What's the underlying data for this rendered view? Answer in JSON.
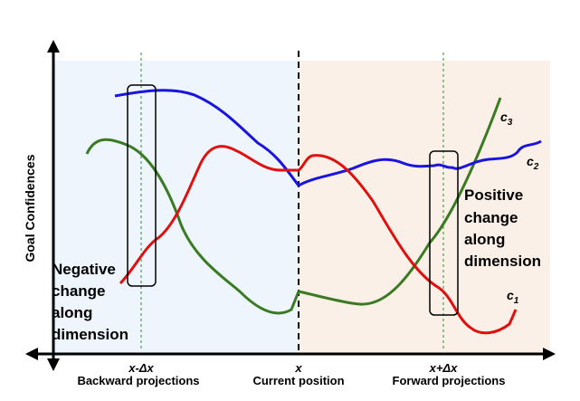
{
  "y_axis_label": "Goal Confidences",
  "ticks": {
    "left": "x-Δx",
    "center": "x",
    "right": "x+Δx"
  },
  "regions": {
    "backward": "Backward projections",
    "current": "Current position",
    "forward": "Forward projections"
  },
  "annotations": {
    "negative": [
      "Negative",
      "change",
      "along",
      "dimension"
    ],
    "positive": [
      "Positive",
      "change",
      "along",
      "dimension"
    ]
  },
  "curves": [
    {
      "name": "c",
      "sub": "3",
      "color": "#3a7a22"
    },
    {
      "name": "c",
      "sub": "2",
      "color": "#1a14e0"
    },
    {
      "name": "c",
      "sub": "1",
      "color": "#e01010"
    }
  ],
  "colors": {
    "backward_fill": "#eef5fc",
    "forward_fill": "#fbf0e7",
    "axis": "#000000",
    "guide": "#2f8a2f"
  }
}
